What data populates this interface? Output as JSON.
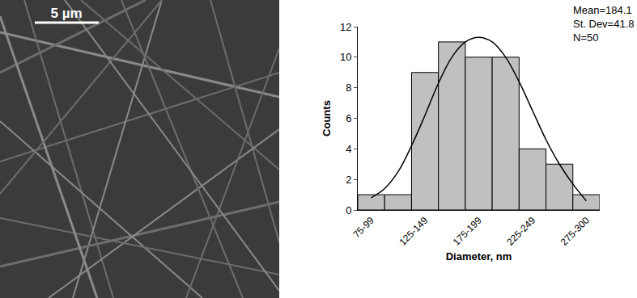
{
  "image": {
    "scale_bar": "5 µm"
  },
  "chart_data": {
    "type": "bar",
    "x_label": "Diameter, nm",
    "y_label": "Counts",
    "categories": [
      "75-99",
      null,
      "125-149",
      null,
      "175-199",
      null,
      "225-249",
      null,
      "275-300"
    ],
    "values": [
      1,
      1,
      9,
      11,
      10,
      10,
      4,
      3,
      1
    ],
    "color": "#c0c0c0",
    "fit": {
      "type": "line",
      "color": "#000000",
      "line_style": "solid",
      "x": [
        0,
        0.5,
        1,
        1.5,
        2,
        2.5,
        3,
        3.5,
        4,
        4.5,
        5,
        5.5,
        6,
        6.5,
        7,
        7.5,
        8
      ],
      "values": [
        0.8,
        1.4,
        2.5,
        4.2,
        6.2,
        8.3,
        10.0,
        11.0,
        11.3,
        11.0,
        10.0,
        8.4,
        6.5,
        4.6,
        3.0,
        1.7,
        0.6
      ]
    },
    "ylim": [
      0,
      12
    ],
    "yticks": [
      0,
      2,
      4,
      6,
      8,
      10,
      12
    ],
    "annotations": [
      "Mean=184.1",
      "St. Dev=41.8",
      "N=50"
    ],
    "grid": false
  }
}
